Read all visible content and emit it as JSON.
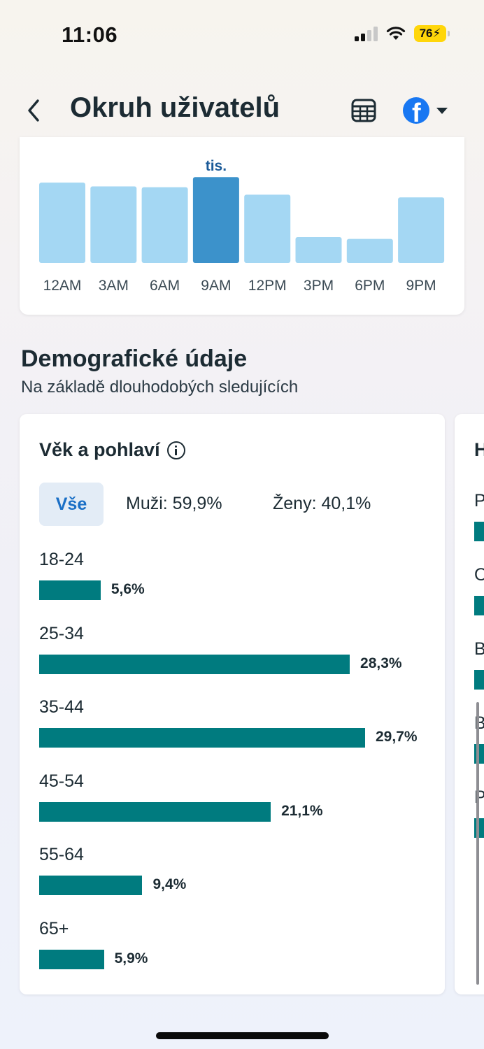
{
  "status_bar": {
    "time": "11:06",
    "battery": "76"
  },
  "header": {
    "title": "Okruh uživatelů",
    "back_icon": "chevron-left-icon",
    "table_icon": "table-icon",
    "account_icon": "facebook-icon",
    "dropdown_icon": "caret-down-icon"
  },
  "chart_data": {
    "type": "bar",
    "categories": [
      "12AM",
      "3AM",
      "6AM",
      "9AM",
      "12PM",
      "3PM",
      "6PM",
      "9PM"
    ],
    "values": [
      0.87,
      0.83,
      0.82,
      0.93,
      0.74,
      0.28,
      0.26,
      0.71
    ],
    "highlighted_index": 3,
    "highlight_label": "tis.",
    "title": "",
    "xlabel": "",
    "ylabel": "",
    "ylim": [
      0,
      1.0
    ],
    "grid": false,
    "colors": {
      "bar": "#a4d7f3",
      "highlight": "#3c92cb"
    }
  },
  "demographics": {
    "title": "Demografické údaje",
    "subtitle": "Na základě dlouhodobých sledujících",
    "age_gender": {
      "title": "Věk a pohlaví",
      "info_icon": "info-icon",
      "filters": {
        "all": "Vše",
        "men": "Muži: 59,9%",
        "women": "Ženy: 40,1%"
      },
      "bar_max_percent": 29.7,
      "bar_color": "#007b7f",
      "rows": [
        {
          "label": "18-24",
          "percent": 5.6,
          "value_text": "5,6%"
        },
        {
          "label": "25-34",
          "percent": 28.3,
          "value_text": "28,3%"
        },
        {
          "label": "35-44",
          "percent": 29.7,
          "value_text": "29,7%"
        },
        {
          "label": "45-54",
          "percent": 21.1,
          "value_text": "21,1%"
        },
        {
          "label": "55-64",
          "percent": 9.4,
          "value_text": "9,4%"
        },
        {
          "label": "65+",
          "percent": 5.9,
          "value_text": "5,9%"
        }
      ]
    },
    "next_card": {
      "title": "H",
      "items": [
        "P",
        "O",
        "B",
        "B",
        "P"
      ]
    }
  }
}
